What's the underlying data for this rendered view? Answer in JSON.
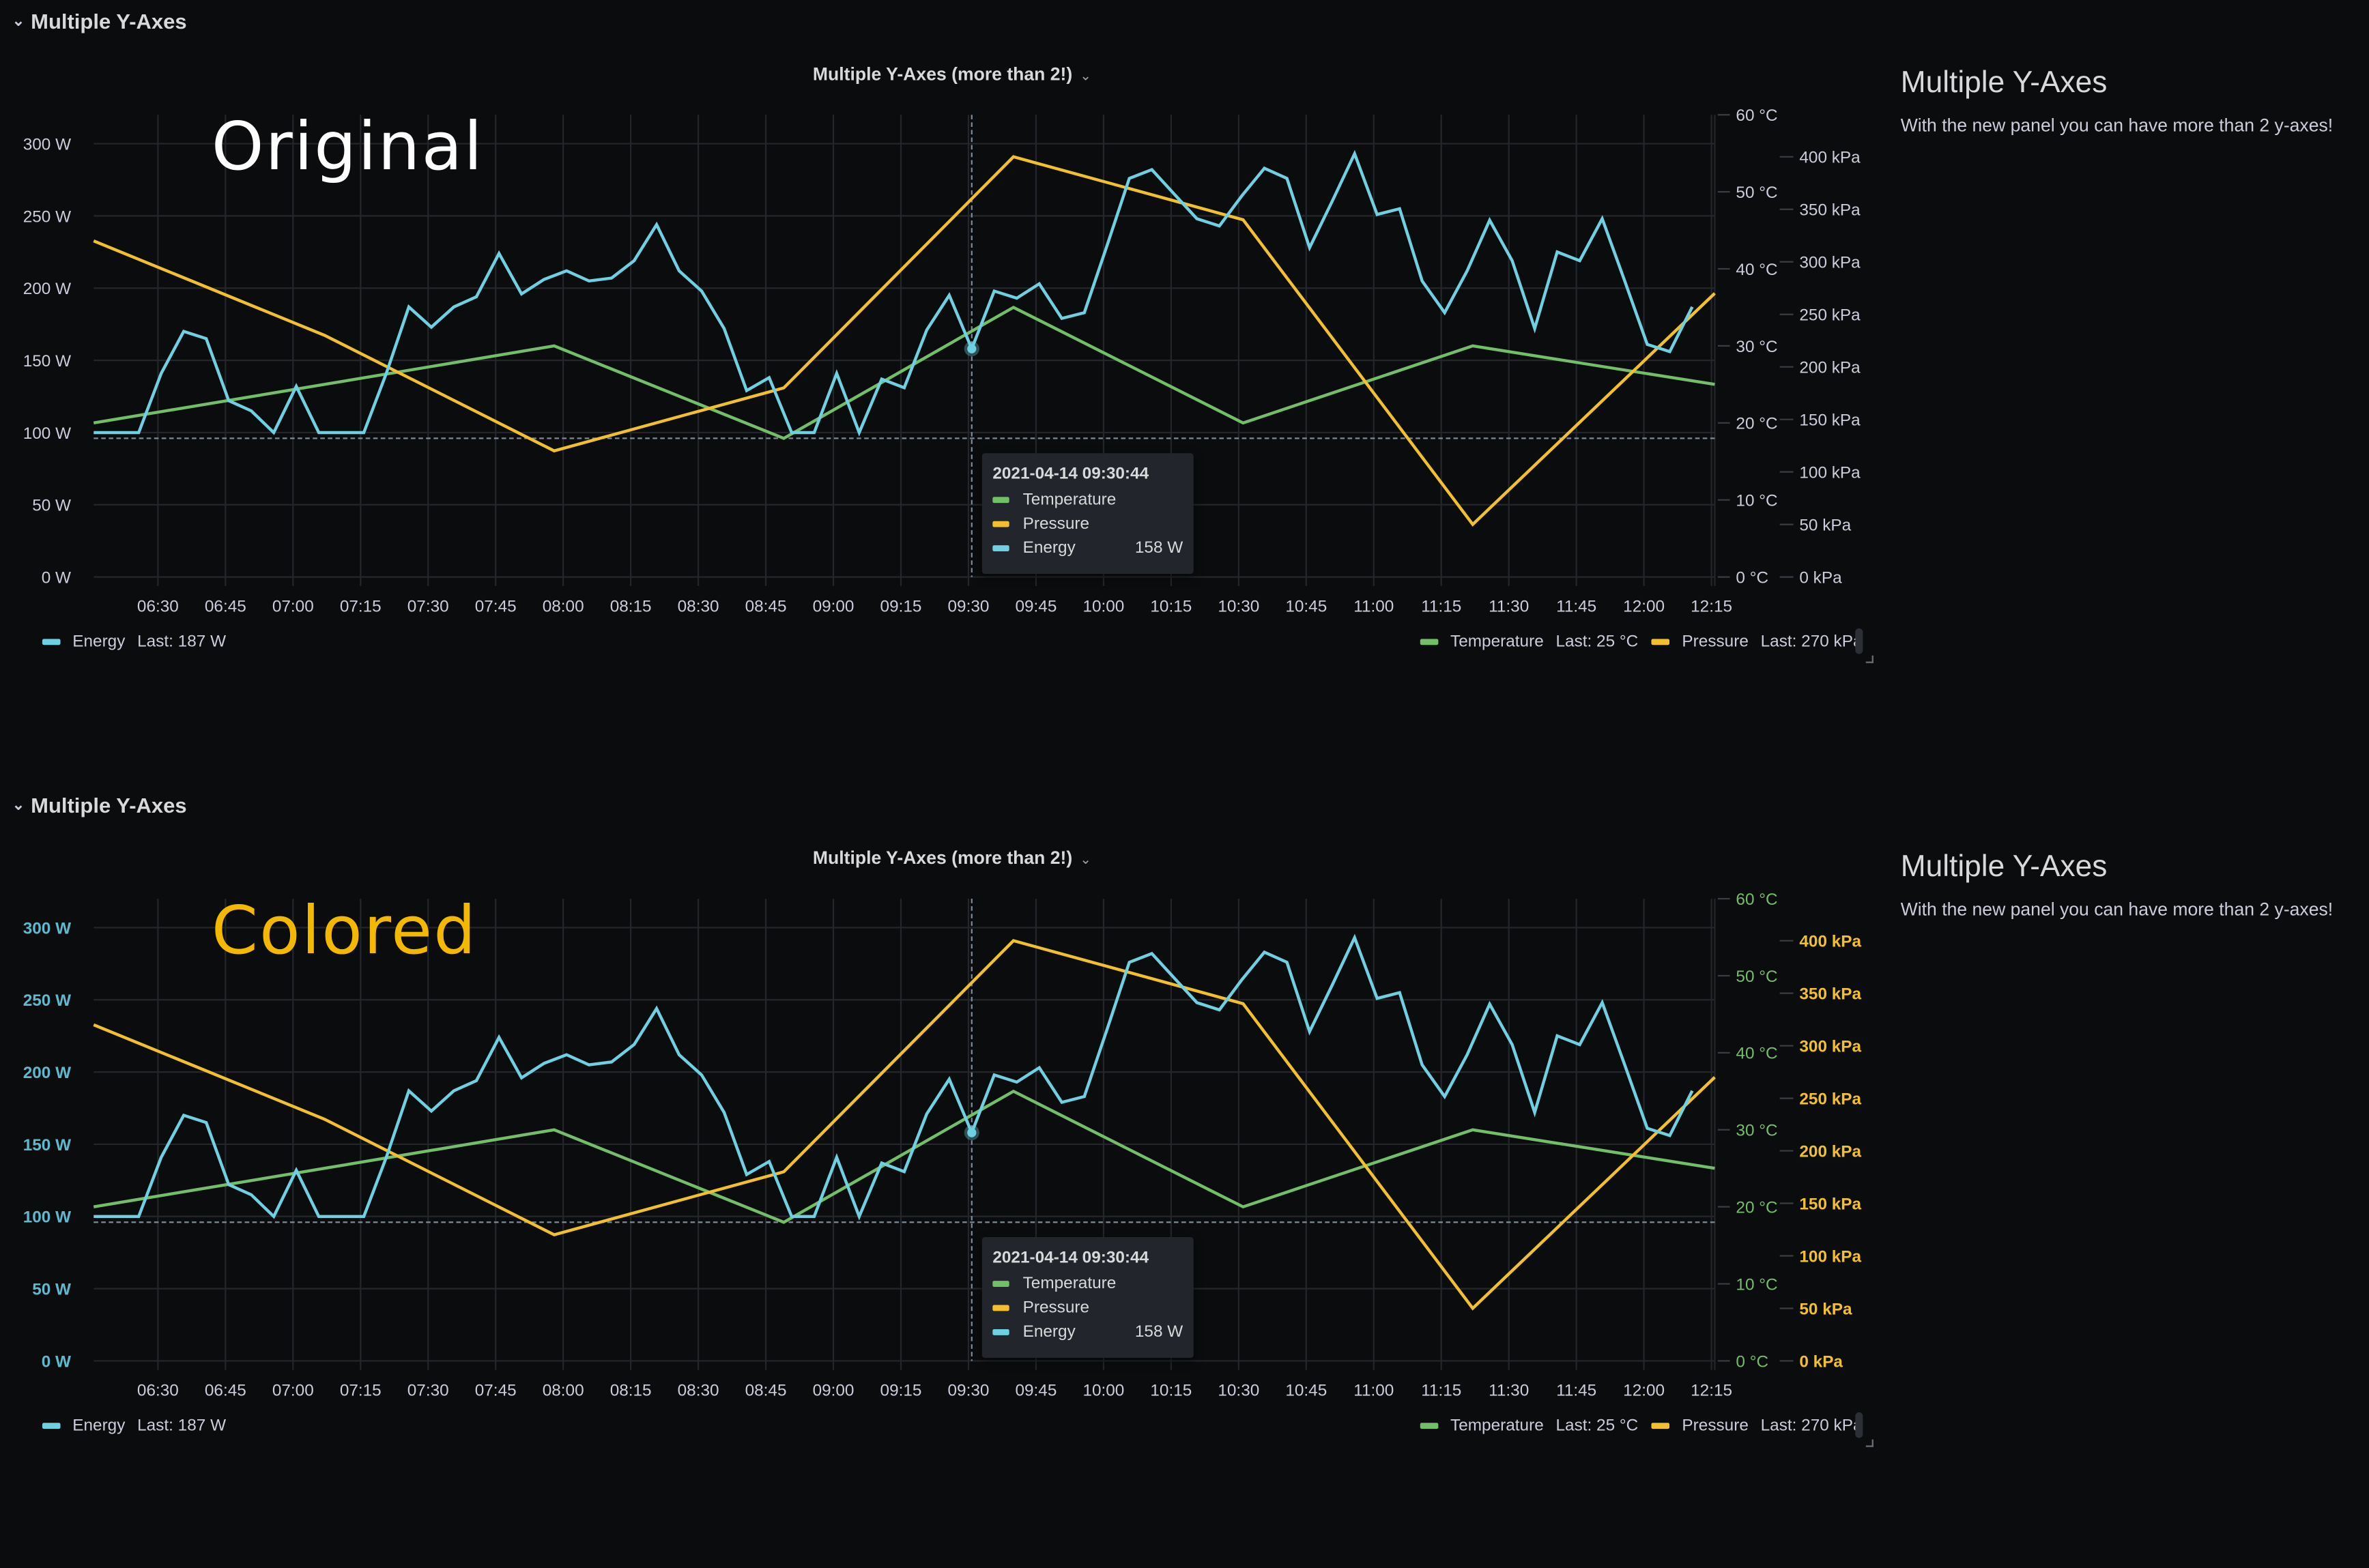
{
  "colors": {
    "energy": "#6ed0e0",
    "temperature": "#73bf69",
    "pressure": "#f2c02c",
    "grid": "#24262b",
    "axis_text": "#ccccdc",
    "background": "#0b0c0e",
    "tooltip_bg": "#22252b",
    "original_label": "#ffffff",
    "colored_label": "#f5b800",
    "crosshair": "#7d8a99"
  },
  "panels": [
    {
      "row_title": "Multiple Y-Axes",
      "chart_title": "Multiple Y-Axes (more than 2!)",
      "overlay_label": "Original",
      "colored_axes": false,
      "tooltip": {
        "time": "2021-04-14 09:30:44",
        "rows": [
          {
            "name": "Temperature",
            "value": ""
          },
          {
            "name": "Pressure",
            "value": ""
          },
          {
            "name": "Energy",
            "value": "158 W"
          }
        ]
      },
      "legend": {
        "left": [
          {
            "name": "Energy",
            "last": "Last: 187 W"
          }
        ],
        "right": [
          {
            "name": "Temperature",
            "last": "Last: 25 °C"
          },
          {
            "name": "Pressure",
            "last": "Last: 270 kPa"
          }
        ]
      },
      "text_panel": {
        "title": "Multiple Y-Axes",
        "body": "With the new panel you can have more than 2 y-axes!"
      }
    },
    {
      "row_title": "Multiple Y-Axes",
      "chart_title": "Multiple Y-Axes (more than 2!)",
      "overlay_label": "Colored",
      "colored_axes": true,
      "tooltip": {
        "time": "2021-04-14 09:30:44",
        "rows": [
          {
            "name": "Temperature",
            "value": ""
          },
          {
            "name": "Pressure",
            "value": ""
          },
          {
            "name": "Energy",
            "value": "158 W"
          }
        ]
      },
      "legend": {
        "left": [
          {
            "name": "Energy",
            "last": "Last: 187 W"
          }
        ],
        "right": [
          {
            "name": "Temperature",
            "last": "Last: 25 °C"
          },
          {
            "name": "Pressure",
            "last": "Last: 270 kPa"
          }
        ]
      },
      "text_panel": {
        "title": "Multiple Y-Axes",
        "body": "With the new panel you can have more than 2 y-axes!"
      }
    }
  ],
  "chart_data": [
    {
      "type": "line",
      "title": "Multiple Y-Axes (more than 2!)",
      "xlim": [
        "06:15:44",
        "12:15:44"
      ],
      "x_ticks": [
        "06:30",
        "06:45",
        "07:00",
        "07:15",
        "07:30",
        "07:45",
        "08:00",
        "08:15",
        "08:30",
        "08:45",
        "09:00",
        "09:15",
        "09:30",
        "09:45",
        "10:00",
        "10:15",
        "10:30",
        "10:45",
        "11:00",
        "11:15",
        "11:30",
        "11:45",
        "12:00",
        "12:15"
      ],
      "axes": {
        "energy": {
          "side": "left",
          "unit": "W",
          "ticks": [
            "0 W",
            "50 W",
            "100 W",
            "150 W",
            "200 W",
            "250 W",
            "300 W"
          ],
          "tick_values": [
            0,
            50,
            100,
            150,
            200,
            250,
            300
          ],
          "ylim": [
            0,
            320
          ]
        },
        "temperature": {
          "side": "right",
          "unit": "°C",
          "ticks": [
            "0 °C",
            "10 °C",
            "20 °C",
            "30 °C",
            "40 °C",
            "50 °C",
            "60 °C"
          ],
          "tick_values": [
            0,
            10,
            20,
            30,
            40,
            50,
            60
          ],
          "ylim": [
            0,
            60
          ]
        },
        "pressure": {
          "side": "right",
          "unit": "kPa",
          "ticks": [
            "0 kPa",
            "50 kPa",
            "100 kPa",
            "150 kPa",
            "200 kPa",
            "250 kPa",
            "300 kPa",
            "350 kPa",
            "400 kPa"
          ],
          "tick_values": [
            0,
            50,
            100,
            150,
            200,
            250,
            300,
            350,
            400
          ],
          "ylim": [
            0,
            440
          ]
        }
      },
      "grid": true,
      "legend_placement": "bottom",
      "cursor": {
        "time": "09:30:44",
        "energy": 158,
        "horizontal_w": 96
      },
      "series": [
        {
          "name": "Temperature",
          "axis": "temperature",
          "color": "#73bf69",
          "x": [
            "06:15:44",
            "07:07",
            "07:58",
            "08:49",
            "09:40",
            "10:31",
            "11:22",
            "12:15:44"
          ],
          "values": [
            20,
            25,
            30,
            18,
            35,
            20,
            30,
            25
          ]
        },
        {
          "name": "Pressure",
          "axis": "pressure",
          "color": "#f2c02c",
          "x": [
            "06:15:44",
            "07:07",
            "07:58",
            "08:49",
            "09:40",
            "10:31",
            "11:22",
            "12:15:44"
          ],
          "values": [
            320,
            230,
            120,
            180,
            400,
            340,
            50,
            270
          ]
        },
        {
          "name": "Energy",
          "axis": "energy",
          "color": "#6ed0e0",
          "x": [
            "06:15:44",
            "06:20:44",
            "06:25:44",
            "06:30:44",
            "06:35:44",
            "06:40:44",
            "06:45:44",
            "06:50:44",
            "06:55:44",
            "07:00:44",
            "07:05:44",
            "07:10:44",
            "07:15:44",
            "07:20:44",
            "07:25:44",
            "07:30:44",
            "07:35:44",
            "07:40:44",
            "07:45:44",
            "07:50:44",
            "07:55:44",
            "08:00:44",
            "08:05:44",
            "08:10:44",
            "08:15:44",
            "08:20:44",
            "08:25:44",
            "08:30:44",
            "08:35:44",
            "08:40:44",
            "08:45:44",
            "08:50:44",
            "08:55:44",
            "09:00:44",
            "09:05:44",
            "09:10:44",
            "09:15:44",
            "09:20:44",
            "09:25:44",
            "09:30:44",
            "09:35:44",
            "09:40:44",
            "09:45:44",
            "09:50:44",
            "09:55:44",
            "10:00:44",
            "10:05:44",
            "10:10:44",
            "10:15:44",
            "10:20:44",
            "10:25:44",
            "10:30:44",
            "10:35:44",
            "10:40:44",
            "10:45:44",
            "10:50:44",
            "10:55:44",
            "11:00:44",
            "11:05:44",
            "11:10:44",
            "11:15:44",
            "11:20:44",
            "11:25:44",
            "11:30:44",
            "11:35:44",
            "11:40:44",
            "11:45:44",
            "11:50:44",
            "11:55:44",
            "12:00:44",
            "12:05:44",
            "12:10:44"
          ],
          "values": [
            100,
            100,
            100,
            141,
            170,
            165,
            122,
            115,
            100,
            132,
            100,
            100,
            100,
            141,
            187,
            173,
            187,
            194,
            224,
            196,
            206,
            212,
            205,
            207,
            219,
            244,
            212,
            198,
            172,
            129,
            138,
            100,
            100,
            141,
            100,
            137,
            131,
            171,
            195,
            158,
            198,
            193,
            203,
            179,
            183,
            229,
            276,
            282,
            265,
            248,
            243,
            264,
            283,
            276,
            228,
            260,
            293,
            251,
            255,
            205,
            183,
            212,
            247,
            219,
            172,
            225,
            219,
            248,
            205,
            161,
            156,
            187
          ]
        }
      ]
    },
    {
      "type": "line",
      "title": "Multiple Y-Axes (more than 2!)",
      "xlim": [
        "06:15:44",
        "12:15:44"
      ],
      "x_ticks": [
        "06:30",
        "06:45",
        "07:00",
        "07:15",
        "07:30",
        "07:45",
        "08:00",
        "08:15",
        "08:30",
        "08:45",
        "09:00",
        "09:15",
        "09:30",
        "09:45",
        "10:00",
        "10:15",
        "10:30",
        "10:45",
        "11:00",
        "11:15",
        "11:30",
        "11:45",
        "12:00",
        "12:15"
      ],
      "axes": {
        "energy": {
          "side": "left",
          "unit": "W",
          "ticks": [
            "0 W",
            "50 W",
            "100 W",
            "150 W",
            "200 W",
            "250 W",
            "300 W"
          ],
          "tick_values": [
            0,
            50,
            100,
            150,
            200,
            250,
            300
          ],
          "ylim": [
            0,
            320
          ],
          "label_color": "#5fb8cc"
        },
        "temperature": {
          "side": "right",
          "unit": "°C",
          "ticks": [
            "0 °C",
            "10 °C",
            "20 °C",
            "30 °C",
            "40 °C",
            "50 °C",
            "60 °C"
          ],
          "tick_values": [
            0,
            10,
            20,
            30,
            40,
            50,
            60
          ],
          "ylim": [
            0,
            60
          ],
          "label_color": "#73bf69"
        },
        "pressure": {
          "side": "right",
          "unit": "kPa",
          "ticks": [
            "0 kPa",
            "50 kPa",
            "100 kPa",
            "150 kPa",
            "200 kPa",
            "250 kPa",
            "300 kPa",
            "350 kPa",
            "400 kPa"
          ],
          "tick_values": [
            0,
            50,
            100,
            150,
            200,
            250,
            300,
            350,
            400
          ],
          "ylim": [
            0,
            440
          ],
          "label_color": "#f2c02c"
        }
      },
      "grid": true,
      "legend_placement": "bottom",
      "cursor": {
        "time": "09:30:44",
        "energy": 158,
        "horizontal_w": 96
      },
      "series": [
        {
          "name": "Temperature",
          "axis": "temperature",
          "color": "#73bf69",
          "x": [
            "06:15:44",
            "07:07",
            "07:58",
            "08:49",
            "09:40",
            "10:31",
            "11:22",
            "12:15:44"
          ],
          "values": [
            20,
            25,
            30,
            18,
            35,
            20,
            30,
            25
          ]
        },
        {
          "name": "Pressure",
          "axis": "pressure",
          "color": "#f2c02c",
          "x": [
            "06:15:44",
            "07:07",
            "07:58",
            "08:49",
            "09:40",
            "10:31",
            "11:22",
            "12:15:44"
          ],
          "values": [
            320,
            230,
            120,
            180,
            400,
            340,
            50,
            270
          ]
        },
        {
          "name": "Energy",
          "axis": "energy",
          "color": "#6ed0e0",
          "x": [
            "06:15:44",
            "06:20:44",
            "06:25:44",
            "06:30:44",
            "06:35:44",
            "06:40:44",
            "06:45:44",
            "06:50:44",
            "06:55:44",
            "07:00:44",
            "07:05:44",
            "07:10:44",
            "07:15:44",
            "07:20:44",
            "07:25:44",
            "07:30:44",
            "07:35:44",
            "07:40:44",
            "07:45:44",
            "07:50:44",
            "07:55:44",
            "08:00:44",
            "08:05:44",
            "08:10:44",
            "08:15:44",
            "08:20:44",
            "08:25:44",
            "08:30:44",
            "08:35:44",
            "08:40:44",
            "08:45:44",
            "08:50:44",
            "08:55:44",
            "09:00:44",
            "09:05:44",
            "09:10:44",
            "09:15:44",
            "09:20:44",
            "09:25:44",
            "09:30:44",
            "09:35:44",
            "09:40:44",
            "09:45:44",
            "09:50:44",
            "09:55:44",
            "10:00:44",
            "10:05:44",
            "10:10:44",
            "10:15:44",
            "10:20:44",
            "10:25:44",
            "10:30:44",
            "10:35:44",
            "10:40:44",
            "10:45:44",
            "10:50:44",
            "10:55:44",
            "11:00:44",
            "11:05:44",
            "11:10:44",
            "11:15:44",
            "11:20:44",
            "11:25:44",
            "11:30:44",
            "11:35:44",
            "11:40:44",
            "11:45:44",
            "11:50:44",
            "11:55:44",
            "12:00:44",
            "12:05:44",
            "12:10:44"
          ],
          "values": [
            100,
            100,
            100,
            141,
            170,
            165,
            122,
            115,
            100,
            132,
            100,
            100,
            100,
            141,
            187,
            173,
            187,
            194,
            224,
            196,
            206,
            212,
            205,
            207,
            219,
            244,
            212,
            198,
            172,
            129,
            138,
            100,
            100,
            141,
            100,
            137,
            131,
            171,
            195,
            158,
            198,
            193,
            203,
            179,
            183,
            229,
            276,
            282,
            265,
            248,
            243,
            264,
            283,
            276,
            228,
            260,
            293,
            251,
            255,
            205,
            183,
            212,
            247,
            219,
            172,
            225,
            219,
            248,
            205,
            161,
            156,
            187
          ]
        }
      ]
    }
  ]
}
